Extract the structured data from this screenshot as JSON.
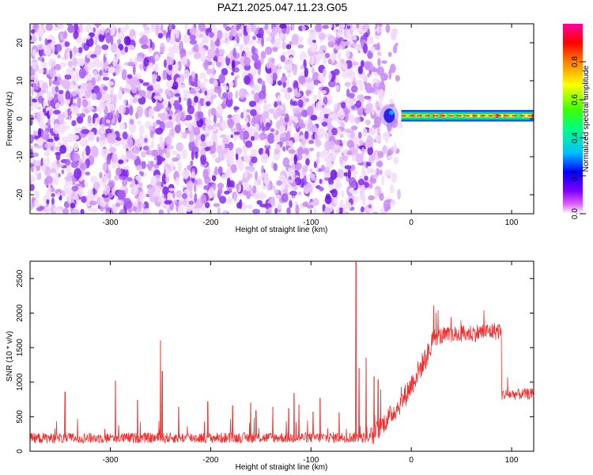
{
  "figure_title": "PAZ1.2025.047.11.23.G05",
  "colors": {
    "snr_line": "#f03030",
    "spectrogram_low": "#7a1ff0",
    "axis": "#000000"
  },
  "chart_data": [
    {
      "type": "heatmap",
      "title": "",
      "xlabel": "Height of straight line (km)",
      "ylabel": "Frequency (Hz)",
      "xlim": [
        -380,
        122
      ],
      "ylim": [
        -25,
        25
      ],
      "xticks": [
        -300,
        -200,
        -100,
        0,
        100
      ],
      "yticks": [
        -20,
        -10,
        0,
        10,
        20
      ],
      "colorbar": {
        "label": "Normalized spectral amplitude",
        "range": [
          0.0,
          1.0
        ],
        "ticks": [
          0.0,
          0.2,
          0.4,
          0.6,
          0.8
        ],
        "colormap": [
          "#ffffff",
          "#e060ff",
          "#8000ff",
          "#0000ff",
          "#00c0ff",
          "#00ff80",
          "#40ff00",
          "#ffff00",
          "#ff8000",
          "#ff0000",
          "#ff00a0"
        ]
      },
      "features": [
        {
          "kind": "noise",
          "x_range": [
            -380,
            -10
          ],
          "freq_range": [
            -25,
            25
          ],
          "amplitude_range": [
            0.0,
            0.18
          ]
        },
        {
          "kind": "noise-fade",
          "x_range": [
            -40,
            -10
          ],
          "freq_range": [
            -25,
            25
          ],
          "amplitude_range": [
            0.0,
            0.12
          ]
        },
        {
          "kind": "signal-onset",
          "x": -22,
          "freq": 0.8,
          "amplitude": 0.25
        },
        {
          "kind": "carrier",
          "x_range": [
            -10,
            122
          ],
          "freq_center": 0.8,
          "bandwidth": 2.0,
          "peak_amplitude": 0.95
        }
      ]
    },
    {
      "type": "line",
      "title": "",
      "xlabel": "Height of straight line (km)",
      "ylabel": "SNR (10 * v/v)",
      "xlim": [
        -380,
        122
      ],
      "ylim": [
        0,
        2750
      ],
      "xticks": [
        -300,
        -200,
        -100,
        0,
        100
      ],
      "yticks": [
        0,
        500,
        1000,
        1500,
        2000,
        2500
      ],
      "baseline_segments": [
        {
          "x": [
            -380,
            -40
          ],
          "y_start": 190,
          "y_end": 200,
          "noise": 75
        },
        {
          "x": [
            -40,
            -10
          ],
          "y_start": 200,
          "y_end": 700,
          "noise": 150
        },
        {
          "x": [
            -10,
            20
          ],
          "y_start": 700,
          "y_end": 1500,
          "noise": 170
        },
        {
          "x": [
            20,
            90
          ],
          "y_start": 1650,
          "y_end": 1750,
          "noise": 130
        },
        {
          "x": [
            90,
            122
          ],
          "y_start": 820,
          "y_end": 830,
          "noise": 80
        }
      ],
      "spikes": [
        {
          "x": -345,
          "y": 860
        },
        {
          "x": -295,
          "y": 1020
        },
        {
          "x": -273,
          "y": 740
        },
        {
          "x": -250,
          "y": 1600
        },
        {
          "x": -248,
          "y": 1160
        },
        {
          "x": -232,
          "y": 640
        },
        {
          "x": -203,
          "y": 720
        },
        {
          "x": -178,
          "y": 660
        },
        {
          "x": -160,
          "y": 700
        },
        {
          "x": -155,
          "y": 590
        },
        {
          "x": -138,
          "y": 640
        },
        {
          "x": -122,
          "y": 620
        },
        {
          "x": -117,
          "y": 840
        },
        {
          "x": -112,
          "y": 670
        },
        {
          "x": -98,
          "y": 570
        },
        {
          "x": -91,
          "y": 770
        },
        {
          "x": -72,
          "y": 560
        },
        {
          "x": -55,
          "y": 2740
        },
        {
          "x": -52,
          "y": 1200
        },
        {
          "x": -45,
          "y": 1350
        },
        {
          "x": -37,
          "y": 1080
        },
        {
          "x": -33,
          "y": 1040
        }
      ]
    }
  ]
}
